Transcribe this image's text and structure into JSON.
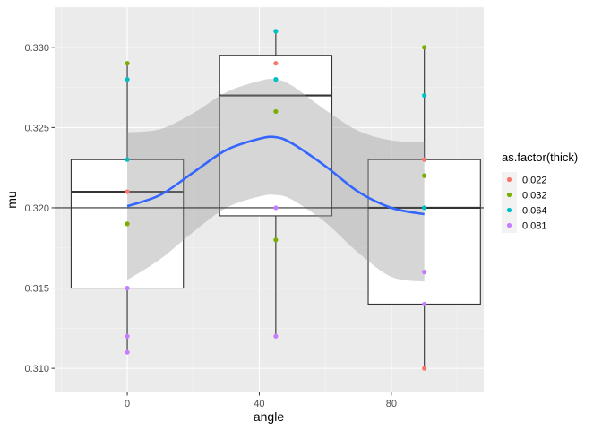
{
  "chart_data": {
    "type": "scatter",
    "xlabel": "angle",
    "ylabel": "mu",
    "xlim": [
      -22,
      108
    ],
    "ylim": [
      0.3085,
      0.3325
    ],
    "x_ticks": [
      0,
      40,
      80
    ],
    "x_tick_labels": [
      "0",
      "40",
      "80"
    ],
    "y_ticks": [
      0.31,
      0.315,
      0.32,
      0.325,
      0.33
    ],
    "y_tick_labels": [
      "0.310",
      "0.315",
      "0.320",
      "0.325",
      "0.330"
    ],
    "grid": true,
    "reference_line_y": 0.32,
    "legend": {
      "title": "as.factor(thick)",
      "placement": "right",
      "entries": [
        "0.022",
        "0.032",
        "0.064",
        "0.081"
      ],
      "colors": [
        "#F8766D",
        "#7CAE00",
        "#00BFC4",
        "#C77CFF"
      ]
    },
    "boxplots": [
      {
        "x": 0,
        "x_range": [
          -17,
          17
        ],
        "lower": 0.315,
        "q1": 0.315,
        "median": 0.321,
        "q3": 0.323,
        "upper": 0.323,
        "whisker_min": 0.311,
        "whisker_max": 0.329
      },
      {
        "x": 45,
        "x_range": [
          28,
          62
        ],
        "lower": 0.3195,
        "q1": 0.3195,
        "median": 0.327,
        "q3": 0.3295,
        "upper": 0.3295,
        "whisker_min": 0.312,
        "whisker_max": 0.331
      },
      {
        "x": 90,
        "x_range": [
          73,
          107
        ],
        "lower": 0.314,
        "q1": 0.314,
        "median": 0.32,
        "q3": 0.323,
        "upper": 0.323,
        "whisker_min": 0.31,
        "whisker_max": 0.33
      }
    ],
    "series": [
      {
        "name": "0.022",
        "color": "#F8766D",
        "points": [
          [
            0,
            0.321
          ],
          [
            45,
            0.329
          ],
          [
            90,
            0.323
          ],
          [
            90,
            0.31
          ]
        ]
      },
      {
        "name": "0.032",
        "color": "#7CAE00",
        "points": [
          [
            0,
            0.329
          ],
          [
            0,
            0.319
          ],
          [
            45,
            0.326
          ],
          [
            45,
            0.318
          ],
          [
            90,
            0.33
          ],
          [
            90,
            0.322
          ]
        ]
      },
      {
        "name": "0.064",
        "color": "#00BFC4",
        "points": [
          [
            0,
            0.328
          ],
          [
            0,
            0.323
          ],
          [
            45,
            0.331
          ],
          [
            45,
            0.328
          ],
          [
            90,
            0.327
          ],
          [
            90,
            0.32
          ]
        ]
      },
      {
        "name": "0.081",
        "color": "#C77CFF",
        "points": [
          [
            0,
            0.315
          ],
          [
            0,
            0.312
          ],
          [
            0,
            0.311
          ],
          [
            45,
            0.32
          ],
          [
            45,
            0.312
          ],
          [
            90,
            0.316
          ],
          [
            90,
            0.314
          ]
        ]
      }
    ],
    "smooth": {
      "color": "#3366FF",
      "band_color": "#999999",
      "x": [
        0,
        10,
        20,
        30,
        40,
        45,
        50,
        60,
        70,
        80,
        90
      ],
      "y": [
        0.3201,
        0.3208,
        0.3222,
        0.3236,
        0.3243,
        0.3244,
        0.324,
        0.3226,
        0.321,
        0.32,
        0.3196
      ],
      "lower": [
        0.3155,
        0.3168,
        0.3185,
        0.32,
        0.3207,
        0.3208,
        0.3205,
        0.3191,
        0.3172,
        0.3157,
        0.3154
      ],
      "upper": [
        0.3247,
        0.3249,
        0.3259,
        0.3272,
        0.3279,
        0.328,
        0.3276,
        0.3261,
        0.3248,
        0.3242,
        0.3241
      ]
    }
  }
}
